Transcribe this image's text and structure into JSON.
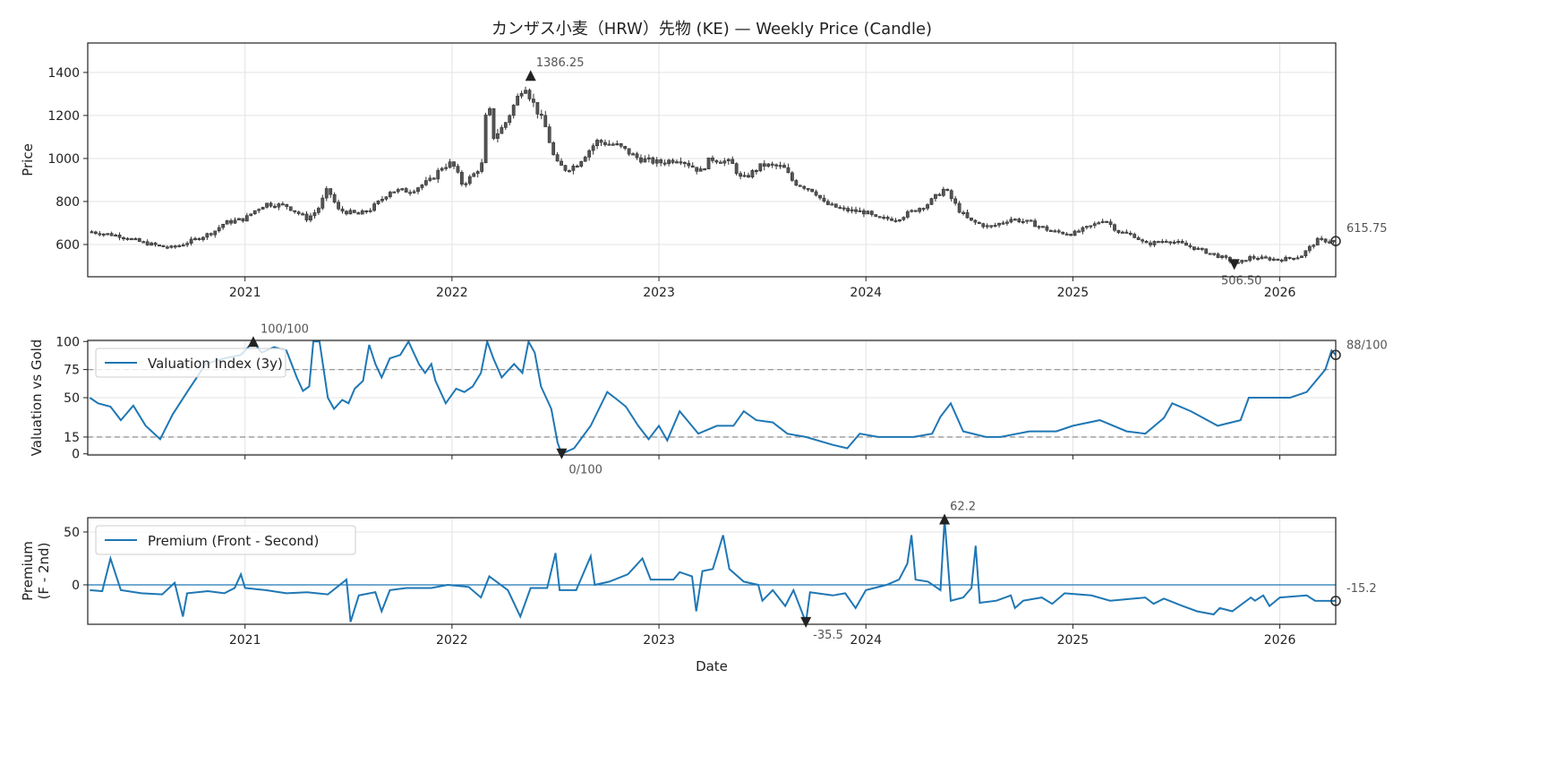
{
  "chart_data": [
    {
      "type": "candlestick",
      "title": "カンザス小麦（HRW）先物 (KE) — Weekly Price (Candle)",
      "ylabel": "Price",
      "xlabel": "",
      "ylim": [
        450,
        1537
      ],
      "xlim": [
        2020.24,
        2026.27
      ],
      "yticks": [
        600,
        800,
        1000,
        1200,
        1400
      ],
      "xticks": [
        2021,
        2022,
        2023,
        2024,
        2025,
        2026
      ],
      "close_keypoints": [
        [
          2020.25,
          660
        ],
        [
          2020.4,
          640
        ],
        [
          2020.5,
          610
        ],
        [
          2020.6,
          590
        ],
        [
          2020.65,
          585
        ],
        [
          2020.75,
          620
        ],
        [
          2020.85,
          660
        ],
        [
          2020.9,
          700
        ],
        [
          2021.0,
          720
        ],
        [
          2021.05,
          760
        ],
        [
          2021.1,
          790
        ],
        [
          2021.2,
          780
        ],
        [
          2021.3,
          720
        ],
        [
          2021.35,
          760
        ],
        [
          2021.4,
          860
        ],
        [
          2021.45,
          760
        ],
        [
          2021.55,
          740
        ],
        [
          2021.6,
          760
        ],
        [
          2021.65,
          800
        ],
        [
          2021.7,
          850
        ],
        [
          2021.8,
          850
        ],
        [
          2021.9,
          900
        ],
        [
          2021.95,
          960
        ],
        [
          2022.0,
          980
        ],
        [
          2022.05,
          880
        ],
        [
          2022.1,
          920
        ],
        [
          2022.15,
          980
        ],
        [
          2022.17,
          1300
        ],
        [
          2022.2,
          1100
        ],
        [
          2022.25,
          1150
        ],
        [
          2022.3,
          1250
        ],
        [
          2022.35,
          1350
        ],
        [
          2022.38,
          1280
        ],
        [
          2022.45,
          1150
        ],
        [
          2022.5,
          980
        ],
        [
          2022.55,
          950
        ],
        [
          2022.6,
          970
        ],
        [
          2022.7,
          1080
        ],
        [
          2022.8,
          1060
        ],
        [
          2022.9,
          1000
        ],
        [
          2023.0,
          980
        ],
        [
          2023.1,
          1000
        ],
        [
          2023.2,
          940
        ],
        [
          2023.25,
          1000
        ],
        [
          2023.35,
          980
        ],
        [
          2023.4,
          900
        ],
        [
          2023.5,
          970
        ],
        [
          2023.6,
          960
        ],
        [
          2023.65,
          890
        ],
        [
          2023.75,
          850
        ],
        [
          2023.8,
          790
        ],
        [
          2023.9,
          760
        ],
        [
          2024.0,
          750
        ],
        [
          2024.05,
          720
        ],
        [
          2024.15,
          720
        ],
        [
          2024.3,
          790
        ],
        [
          2024.38,
          860
        ],
        [
          2024.45,
          760
        ],
        [
          2024.5,
          710
        ],
        [
          2024.6,
          680
        ],
        [
          2024.7,
          720
        ],
        [
          2024.8,
          700
        ],
        [
          2024.9,
          660
        ],
        [
          2025.0,
          650
        ],
        [
          2025.1,
          690
        ],
        [
          2025.15,
          720
        ],
        [
          2025.22,
          660
        ],
        [
          2025.3,
          640
        ],
        [
          2025.35,
          600
        ],
        [
          2025.45,
          620
        ],
        [
          2025.5,
          610
        ],
        [
          2025.6,
          580
        ],
        [
          2025.75,
          530
        ],
        [
          2025.8,
          510
        ],
        [
          2025.85,
          540
        ],
        [
          2026.0,
          530
        ],
        [
          2026.1,
          545
        ],
        [
          2026.18,
          620
        ],
        [
          2026.27,
          615.75
        ]
      ],
      "annotations": {
        "max": {
          "x": 2022.38,
          "y": 1386.25,
          "label": "1386.25"
        },
        "min": {
          "x": 2025.78,
          "y": 506.5,
          "label": "506.50"
        },
        "last": {
          "x": 2026.27,
          "y": 615.75,
          "label": "615.75"
        }
      },
      "colors": {
        "body": "#555555",
        "edge": "#333333"
      }
    },
    {
      "type": "line",
      "ylabel": "Valuation vs Gold",
      "ylim": [
        -1,
        101
      ],
      "yticks": [
        0,
        15,
        50,
        75,
        100
      ],
      "reference_lines": [
        75,
        15
      ],
      "legend": {
        "label": "Valuation Index (3y)",
        "position": "upper-left"
      },
      "color": "#1f77b4",
      "points": [
        [
          2020.25,
          50
        ],
        [
          2020.29,
          45
        ],
        [
          2020.35,
          42
        ],
        [
          2020.4,
          30
        ],
        [
          2020.46,
          43
        ],
        [
          2020.52,
          25
        ],
        [
          2020.59,
          13
        ],
        [
          2020.65,
          35
        ],
        [
          2020.72,
          55
        ],
        [
          2020.81,
          80
        ],
        [
          2020.9,
          85
        ],
        [
          2020.98,
          88
        ],
        [
          2021.04,
          100
        ],
        [
          2021.08,
          90
        ],
        [
          2021.14,
          95
        ],
        [
          2021.2,
          92
        ],
        [
          2021.25,
          68
        ],
        [
          2021.28,
          56
        ],
        [
          2021.31,
          60
        ],
        [
          2021.33,
          100
        ],
        [
          2021.36,
          100
        ],
        [
          2021.4,
          50
        ],
        [
          2021.43,
          40
        ],
        [
          2021.47,
          48
        ],
        [
          2021.5,
          45
        ],
        [
          2021.53,
          58
        ],
        [
          2021.57,
          65
        ],
        [
          2021.6,
          97
        ],
        [
          2021.63,
          80
        ],
        [
          2021.66,
          68
        ],
        [
          2021.7,
          85
        ],
        [
          2021.75,
          88
        ],
        [
          2021.79,
          100
        ],
        [
          2021.84,
          80
        ],
        [
          2021.87,
          72
        ],
        [
          2021.9,
          80
        ],
        [
          2021.92,
          65
        ],
        [
          2021.97,
          45
        ],
        [
          2022.02,
          58
        ],
        [
          2022.06,
          55
        ],
        [
          2022.1,
          60
        ],
        [
          2022.14,
          72
        ],
        [
          2022.17,
          100
        ],
        [
          2022.2,
          85
        ],
        [
          2022.24,
          68
        ],
        [
          2022.3,
          80
        ],
        [
          2022.34,
          72
        ],
        [
          2022.37,
          100
        ],
        [
          2022.4,
          90
        ],
        [
          2022.43,
          60
        ],
        [
          2022.48,
          40
        ],
        [
          2022.51,
          10
        ],
        [
          2022.53,
          0
        ],
        [
          2022.59,
          5
        ],
        [
          2022.67,
          25
        ],
        [
          2022.75,
          55
        ],
        [
          2022.8,
          48
        ],
        [
          2022.84,
          42
        ],
        [
          2022.9,
          25
        ],
        [
          2022.95,
          13
        ],
        [
          2023.0,
          25
        ],
        [
          2023.04,
          12
        ],
        [
          2023.1,
          38
        ],
        [
          2023.19,
          18
        ],
        [
          2023.28,
          25
        ],
        [
          2023.36,
          25
        ],
        [
          2023.41,
          38
        ],
        [
          2023.47,
          30
        ],
        [
          2023.55,
          28
        ],
        [
          2023.62,
          18
        ],
        [
          2023.71,
          15
        ],
        [
          2023.84,
          8
        ],
        [
          2023.91,
          5
        ],
        [
          2023.97,
          18
        ],
        [
          2024.06,
          15
        ],
        [
          2024.14,
          15
        ],
        [
          2024.23,
          15
        ],
        [
          2024.32,
          18
        ],
        [
          2024.36,
          33
        ],
        [
          2024.41,
          45
        ],
        [
          2024.47,
          20
        ],
        [
          2024.58,
          15
        ],
        [
          2024.65,
          15
        ],
        [
          2024.79,
          20
        ],
        [
          2024.92,
          20
        ],
        [
          2025.0,
          25
        ],
        [
          2025.13,
          30
        ],
        [
          2025.26,
          20
        ],
        [
          2025.35,
          18
        ],
        [
          2025.44,
          32
        ],
        [
          2025.48,
          45
        ],
        [
          2025.57,
          38
        ],
        [
          2025.7,
          25
        ],
        [
          2025.81,
          30
        ],
        [
          2025.85,
          50
        ],
        [
          2025.96,
          50
        ],
        [
          2026.05,
          50
        ],
        [
          2026.13,
          55
        ],
        [
          2026.22,
          75
        ],
        [
          2026.25,
          92
        ],
        [
          2026.27,
          88
        ]
      ],
      "annotations": {
        "max": {
          "x": 2021.04,
          "y": 100,
          "label": "100/100"
        },
        "min": {
          "x": 2022.53,
          "y": 0,
          "label": "0/100"
        },
        "last": {
          "x": 2026.27,
          "y": 88,
          "label": "88/100"
        }
      }
    },
    {
      "type": "line",
      "ylabel": "Premium\n(F - 2nd)",
      "ylabel_lines": [
        "Premium",
        "(F - 2nd)"
      ],
      "xlabel": "Date",
      "ylim": [
        -37.3,
        63.5
      ],
      "yticks": [
        0,
        50
      ],
      "reference_lines": [
        0
      ],
      "legend": {
        "label": "Premium (Front - Second)",
        "position": "upper-left"
      },
      "color": "#1f77b4",
      "points": [
        [
          2020.25,
          -5
        ],
        [
          2020.31,
          -6
        ],
        [
          2020.35,
          25
        ],
        [
          2020.4,
          -5
        ],
        [
          2020.5,
          -8
        ],
        [
          2020.6,
          -9
        ],
        [
          2020.66,
          2
        ],
        [
          2020.7,
          -30
        ],
        [
          2020.72,
          -8
        ],
        [
          2020.82,
          -6
        ],
        [
          2020.9,
          -8
        ],
        [
          2020.95,
          -3
        ],
        [
          2020.98,
          10
        ],
        [
          2021.0,
          -3
        ],
        [
          2021.1,
          -5
        ],
        [
          2021.2,
          -8
        ],
        [
          2021.3,
          -7
        ],
        [
          2021.4,
          -9
        ],
        [
          2021.49,
          5
        ],
        [
          2021.51,
          -35
        ],
        [
          2021.55,
          -10
        ],
        [
          2021.63,
          -7
        ],
        [
          2021.66,
          -25
        ],
        [
          2021.7,
          -5
        ],
        [
          2021.78,
          -3
        ],
        [
          2021.9,
          -3
        ],
        [
          2021.98,
          0
        ],
        [
          2022.08,
          -2
        ],
        [
          2022.14,
          -12
        ],
        [
          2022.18,
          8
        ],
        [
          2022.27,
          -5
        ],
        [
          2022.33,
          -30
        ],
        [
          2022.38,
          -3
        ],
        [
          2022.46,
          -3
        ],
        [
          2022.5,
          30
        ],
        [
          2022.52,
          -5
        ],
        [
          2022.6,
          -5
        ],
        [
          2022.67,
          27
        ],
        [
          2022.69,
          0
        ],
        [
          2022.76,
          3
        ],
        [
          2022.85,
          10
        ],
        [
          2022.92,
          25
        ],
        [
          2022.96,
          5
        ],
        [
          2023.07,
          5
        ],
        [
          2023.1,
          12
        ],
        [
          2023.16,
          8
        ],
        [
          2023.18,
          -25
        ],
        [
          2023.21,
          13
        ],
        [
          2023.26,
          15
        ],
        [
          2023.31,
          47
        ],
        [
          2023.34,
          15
        ],
        [
          2023.41,
          3
        ],
        [
          2023.48,
          0
        ],
        [
          2023.5,
          -15
        ],
        [
          2023.55,
          -5
        ],
        [
          2023.61,
          -20
        ],
        [
          2023.65,
          -5
        ],
        [
          2023.71,
          -35.5
        ],
        [
          2023.73,
          -7
        ],
        [
          2023.84,
          -10
        ],
        [
          2023.9,
          -8
        ],
        [
          2023.95,
          -22
        ],
        [
          2024.0,
          -5
        ],
        [
          2024.1,
          0
        ],
        [
          2024.16,
          5
        ],
        [
          2024.2,
          20
        ],
        [
          2024.22,
          47
        ],
        [
          2024.24,
          5
        ],
        [
          2024.3,
          3
        ],
        [
          2024.36,
          -5
        ],
        [
          2024.38,
          62.2
        ],
        [
          2024.41,
          -15
        ],
        [
          2024.47,
          -12
        ],
        [
          2024.51,
          -3
        ],
        [
          2024.53,
          37
        ],
        [
          2024.55,
          -17
        ],
        [
          2024.63,
          -15
        ],
        [
          2024.7,
          -10
        ],
        [
          2024.72,
          -22
        ],
        [
          2024.76,
          -15
        ],
        [
          2024.85,
          -12
        ],
        [
          2024.9,
          -18
        ],
        [
          2024.96,
          -8
        ],
        [
          2025.09,
          -10
        ],
        [
          2025.18,
          -15
        ],
        [
          2025.35,
          -12
        ],
        [
          2025.39,
          -18
        ],
        [
          2025.44,
          -13
        ],
        [
          2025.53,
          -20
        ],
        [
          2025.6,
          -25
        ],
        [
          2025.68,
          -28
        ],
        [
          2025.71,
          -22
        ],
        [
          2025.77,
          -25
        ],
        [
          2025.86,
          -12
        ],
        [
          2025.88,
          -15
        ],
        [
          2025.92,
          -10
        ],
        [
          2025.95,
          -20
        ],
        [
          2026.0,
          -12
        ],
        [
          2026.13,
          -10
        ],
        [
          2026.17,
          -15
        ],
        [
          2026.27,
          -15.2
        ]
      ],
      "annotations": {
        "max": {
          "x": 2024.38,
          "y": 62.2,
          "label": "62.2"
        },
        "min": {
          "x": 2023.71,
          "y": -35.5,
          "label": "-35.5"
        },
        "last": {
          "x": 2026.27,
          "y": -15.2,
          "label": "-15.2"
        }
      }
    }
  ]
}
